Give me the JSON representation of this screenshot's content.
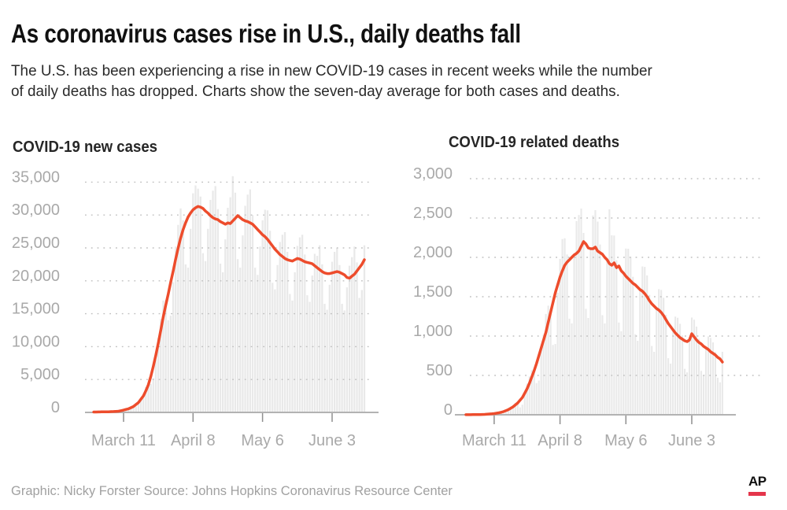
{
  "header": {
    "title": "As coronavirus cases rise in U.S., daily deaths fall",
    "subtitle_line1": "The U.S. has been experiencing a rise in new COVID-19 cases in recent weeks while the number",
    "subtitle_line2": "of daily deaths has dropped. Charts show the seven-day average for both cases and deaths."
  },
  "footer": {
    "credit": "Graphic: Nicky Forster  Source: Johns Hopkins Coronavirus Resource Center",
    "ap_logo_text": "AP"
  },
  "colors": {
    "line": "#ed4c2c",
    "bar": "#e9e9e9",
    "grid": "#c0c0c0",
    "axis": "#b3b3b3",
    "tick": "#8f8f8f",
    "tick_label": "#a9a9a9",
    "ap_red": "#e4354b"
  },
  "chart_data": [
    {
      "type": "bar",
      "title": "COVID-19 new cases",
      "xlabel": "",
      "ylabel": "",
      "ylim": [
        0,
        35000
      ],
      "grid": "dotted horizontal",
      "legend": "none",
      "y_tick_labels": [
        "0",
        "5,000",
        "10,000",
        "15,000",
        "20,000",
        "25,000",
        "30,000",
        "35,000"
      ],
      "y_tick_values": [
        0,
        5000,
        10000,
        15000,
        20000,
        25000,
        30000,
        35000
      ],
      "x_tick_labels": [
        "March 11",
        "April 8",
        "May 6",
        "June 3"
      ],
      "x_tick_day_indices": [
        12,
        40,
        68,
        96
      ],
      "series": [
        {
          "name": "daily new cases",
          "type": "bar",
          "values": [
            70,
            70,
            55,
            60,
            80,
            100,
            115,
            135,
            140,
            120,
            135,
            240,
            380,
            510,
            640,
            760,
            700,
            890,
            1380,
            2160,
            2850,
            3860,
            4400,
            4300,
            5200,
            8000,
            11300,
            14200,
            17000,
            17100,
            14000,
            14700,
            19800,
            25200,
            28500,
            31000,
            29200,
            22500,
            22000,
            27900,
            33300,
            34500,
            34000,
            32800,
            24200,
            23000,
            27900,
            32300,
            33700,
            34400,
            30900,
            22600,
            21300,
            26300,
            31100,
            32700,
            35900,
            33400,
            23300,
            22000,
            26900,
            31400,
            33100,
            33900,
            30000,
            22000,
            20900,
            25200,
            29200,
            30800,
            30700,
            27600,
            19700,
            18700,
            22400,
            25900,
            27000,
            27400,
            24400,
            18000,
            17000,
            21300,
            25300,
            26600,
            27000,
            24000,
            17800,
            16800,
            20800,
            24100,
            23800,
            25400,
            22500,
            16500,
            15600,
            19400,
            22900,
            24400,
            25000,
            22400,
            16500,
            15500,
            19000,
            22300,
            23600,
            25200,
            22800,
            17400,
            18600,
            25400
          ]
        },
        {
          "name": "seven-day average",
          "type": "line",
          "values": [
            60,
            65,
            70,
            78,
            85,
            92,
            100,
            115,
            130,
            155,
            180,
            260,
            350,
            450,
            550,
            720,
            900,
            1200,
            1500,
            2000,
            2500,
            3300,
            4200,
            5500,
            7000,
            8700,
            10500,
            12500,
            14500,
            16300,
            18000,
            19800,
            21500,
            23300,
            25000,
            26500,
            27800,
            28800,
            29700,
            30300,
            30800,
            31100,
            31300,
            31200,
            31000,
            30600,
            30300,
            29900,
            29600,
            29400,
            29300,
            29000,
            28800,
            28600,
            28800,
            28700,
            29100,
            29500,
            29900,
            29600,
            29300,
            29100,
            29000,
            28800,
            28600,
            28200,
            27800,
            27400,
            27000,
            26700,
            26300,
            25800,
            25300,
            24800,
            24400,
            24000,
            23700,
            23400,
            23200,
            23100,
            23000,
            23200,
            23400,
            23300,
            23100,
            22900,
            22800,
            22700,
            22600,
            22300,
            22000,
            21700,
            21400,
            21200,
            21100,
            21100,
            21200,
            21300,
            21400,
            21300,
            21100,
            20900,
            20500,
            20400,
            20700,
            21000,
            21500,
            22000,
            22500,
            23200
          ]
        }
      ]
    },
    {
      "type": "bar",
      "title": "COVID-19 related deaths",
      "xlabel": "",
      "ylabel": "",
      "ylim": [
        0,
        3000
      ],
      "grid": "dotted horizontal",
      "legend": "none",
      "y_tick_labels": [
        "0",
        "500",
        "1,000",
        "1,500",
        "2,000",
        "2,500",
        "3,000"
      ],
      "y_tick_values": [
        0,
        500,
        1000,
        1500,
        2000,
        2500,
        3000
      ],
      "x_tick_labels": [
        "March 11",
        "April 8",
        "May 6",
        "June 3"
      ],
      "x_tick_day_indices": [
        12,
        40,
        68,
        96
      ],
      "series": [
        {
          "name": "daily deaths",
          "type": "bar",
          "values": [
            1,
            1,
            1,
            1,
            2,
            3,
            4,
            5,
            5,
            5,
            6,
            12,
            18,
            24,
            30,
            26,
            16,
            30,
            65,
            98,
            122,
            148,
            158,
            93,
            128,
            275,
            396,
            488,
            566,
            588,
            403,
            435,
            850,
            1020,
            1281,
            1386,
            1344,
            887,
            899,
            1550,
            1980,
            2233,
            2242,
            2037,
            1221,
            1160,
            2030,
            2460,
            2538,
            2620,
            2310,
            1345,
            1230,
            2110,
            2532,
            2599,
            2454,
            2163,
            1265,
            1160,
            1970,
            2610,
            2280,
            2277,
            1963,
            1172,
            1061,
            1800,
            2112,
            2110,
            2006,
            1753,
            1023,
            940,
            1590,
            1884,
            1879,
            1770,
            1523,
            874,
            800,
            1350,
            1596,
            1586,
            1487,
            1271,
            719,
            650,
            1080,
            1248,
            1232,
            1156,
            1008,
            583,
            539,
            950,
            1236,
            1208,
            1121,
            966,
            558,
            505,
            850,
            996,
            976,
            920,
            798,
            471,
            412,
            800
          ]
        },
        {
          "name": "seven-day average",
          "type": "line",
          "values": [
            1,
            1,
            1,
            2,
            2,
            3,
            3,
            4,
            5,
            8,
            10,
            12,
            15,
            20,
            25,
            32,
            40,
            52,
            65,
            82,
            100,
            125,
            150,
            185,
            220,
            275,
            330,
            400,
            480,
            560,
            650,
            750,
            850,
            950,
            1050,
            1175,
            1300,
            1425,
            1550,
            1650,
            1750,
            1830,
            1900,
            1940,
            1970,
            2000,
            2030,
            2050,
            2080,
            2140,
            2200,
            2170,
            2120,
            2110,
            2110,
            2130,
            2080,
            2060,
            2040,
            2000,
            1970,
            1920,
            1900,
            1930,
            1870,
            1890,
            1830,
            1800,
            1760,
            1730,
            1700,
            1670,
            1650,
            1620,
            1590,
            1570,
            1540,
            1500,
            1450,
            1410,
            1380,
            1350,
            1330,
            1300,
            1260,
            1210,
            1160,
            1120,
            1080,
            1040,
            1010,
            980,
            960,
            940,
            930,
            950,
            1030,
            990,
            950,
            920,
            900,
            870,
            850,
            830,
            800,
            780,
            760,
            730,
            710,
            670
          ]
        }
      ]
    }
  ]
}
